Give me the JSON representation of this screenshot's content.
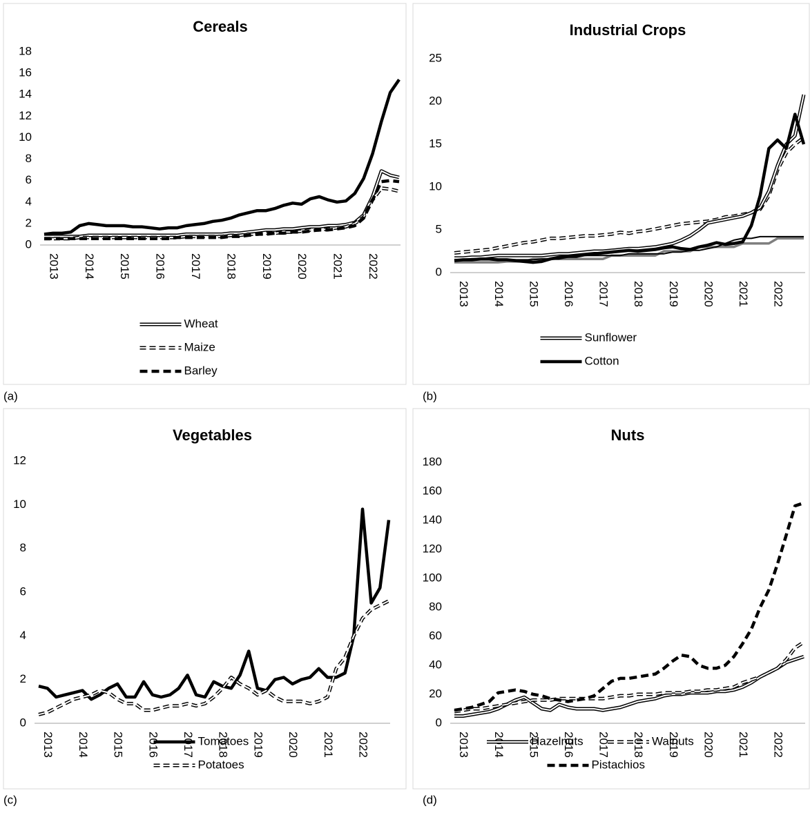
{
  "chart_data": [
    {
      "type": "line",
      "label": "(a)",
      "title": "Cereals",
      "categories": [
        null,
        "2013",
        null,
        null,
        null,
        "2014",
        null,
        null,
        null,
        "2015",
        null,
        null,
        null,
        "2016",
        null,
        null,
        null,
        "2017",
        null,
        null,
        null,
        "2018",
        null,
        null,
        null,
        "2019",
        null,
        null,
        null,
        "2020",
        null,
        null,
        null,
        "2021",
        null,
        null,
        null,
        "2022",
        null,
        null,
        null
      ],
      "ylim": [
        0,
        18
      ],
      "yticks": [
        0,
        2,
        4,
        6,
        8,
        10,
        12,
        14,
        16,
        18
      ],
      "series": [
        {
          "color": "#000000",
          "line_style": "solid",
          "values": [
            1.0,
            1.1,
            1.1,
            1.2,
            1.8,
            2.0,
            1.9,
            1.8,
            1.8,
            1.8,
            1.7,
            1.7,
            1.6,
            1.5,
            1.6,
            1.6,
            1.8,
            1.9,
            2.0,
            2.2,
            2.3,
            2.5,
            2.8,
            3.0,
            3.2,
            3.2,
            3.4,
            3.7,
            3.9,
            3.8,
            4.3,
            4.5,
            4.2,
            4.0,
            4.1,
            4.8,
            6.2,
            8.5,
            11.5,
            14.2,
            15.4
          ]
        },
        {
          "name": "Wheat",
          "color": "#000000",
          "line_style": "double",
          "values": [
            0.8,
            0.8,
            0.8,
            0.8,
            0.8,
            0.9,
            0.9,
            0.9,
            0.9,
            0.9,
            0.9,
            0.9,
            0.9,
            0.9,
            0.9,
            0.9,
            1.0,
            1.0,
            1.0,
            1.0,
            1.0,
            1.1,
            1.1,
            1.2,
            1.3,
            1.4,
            1.4,
            1.5,
            1.5,
            1.6,
            1.7,
            1.7,
            1.8,
            1.8,
            1.9,
            2.1,
            2.8,
            4.5,
            6.9,
            6.5,
            6.3
          ]
        },
        {
          "name": "Maize",
          "color": "#000000",
          "line_style": "double-dashed",
          "values": [
            0.6,
            0.6,
            0.6,
            0.6,
            0.7,
            0.7,
            0.7,
            0.7,
            0.7,
            0.7,
            0.7,
            0.7,
            0.7,
            0.7,
            0.7,
            0.7,
            0.8,
            0.8,
            0.8,
            0.8,
            0.8,
            0.9,
            0.9,
            1.0,
            1.0,
            1.1,
            1.1,
            1.2,
            1.2,
            1.3,
            1.4,
            1.4,
            1.5,
            1.6,
            1.7,
            2.0,
            2.6,
            4.2,
            5.3,
            5.2,
            5.0
          ]
        },
        {
          "name": "Barley",
          "color": "#000000",
          "line_style": "dashed",
          "values": [
            0.6,
            0.6,
            0.6,
            0.6,
            0.6,
            0.6,
            0.6,
            0.6,
            0.6,
            0.6,
            0.6,
            0.6,
            0.6,
            0.6,
            0.6,
            0.7,
            0.7,
            0.7,
            0.7,
            0.7,
            0.7,
            0.8,
            0.8,
            0.9,
            1.0,
            1.0,
            1.1,
            1.1,
            1.2,
            1.2,
            1.3,
            1.4,
            1.4,
            1.5,
            1.6,
            1.8,
            2.5,
            4.2,
            5.9,
            6.0,
            5.9
          ]
        }
      ]
    },
    {
      "type": "line",
      "label": "(b)",
      "title": "Industrial Crops",
      "categories": [
        null,
        "2013",
        null,
        null,
        null,
        "2014",
        null,
        null,
        null,
        "2015",
        null,
        null,
        null,
        "2016",
        null,
        null,
        null,
        "2017",
        null,
        null,
        null,
        "2018",
        null,
        null,
        null,
        "2019",
        null,
        null,
        null,
        "2020",
        null,
        null,
        null,
        "2021",
        null,
        null,
        null,
        "2022",
        null,
        null,
        null
      ],
      "ylim": [
        0,
        25
      ],
      "yticks": [
        0,
        5,
        10,
        15,
        20,
        25
      ],
      "series": [
        {
          "color": "#000000",
          "line_style": "double-dashed",
          "values": [
            2.3,
            2.4,
            2.5,
            2.6,
            2.7,
            2.9,
            3.1,
            3.3,
            3.5,
            3.6,
            3.8,
            4.0,
            4.0,
            4.1,
            4.2,
            4.3,
            4.3,
            4.4,
            4.5,
            4.7,
            4.6,
            4.8,
            4.9,
            5.1,
            5.3,
            5.5,
            5.7,
            5.8,
            5.9,
            6.0,
            6.2,
            6.5,
            6.6,
            6.8,
            7.0,
            7.4,
            9.0,
            12.0,
            14.0,
            15.0,
            15.8
          ]
        },
        {
          "color": "#7f7f7f",
          "line_style": "solid-medium",
          "values": [
            1.2,
            1.2,
            1.2,
            1.2,
            1.2,
            1.2,
            1.3,
            1.3,
            1.3,
            1.6,
            1.6,
            1.6,
            1.6,
            1.6,
            1.6,
            1.6,
            1.6,
            1.6,
            2.0,
            2.0,
            2.0,
            2.0,
            2.0,
            2.0,
            2.5,
            2.5,
            2.5,
            2.5,
            3.0,
            3.0,
            3.0,
            3.0,
            3.0,
            3.4,
            3.4,
            3.4,
            3.4,
            4.0,
            4.0,
            4.0,
            4.0
          ]
        },
        {
          "color": "#000000",
          "line_style": "solid-thin",
          "values": [
            1.5,
            1.5,
            1.5,
            1.5,
            1.5,
            1.5,
            1.5,
            1.5,
            1.5,
            1.5,
            1.6,
            1.6,
            1.6,
            1.8,
            1.8,
            2.0,
            2.0,
            2.0,
            2.0,
            2.0,
            2.2,
            2.2,
            2.2,
            2.2,
            2.2,
            2.4,
            2.4,
            2.6,
            2.6,
            2.8,
            3.0,
            3.4,
            3.8,
            4.0,
            4.0,
            4.2,
            4.2,
            4.2,
            4.2,
            4.2,
            4.2
          ]
        },
        {
          "name": "Sunflower",
          "color": "#000000",
          "line_style": "double",
          "values": [
            1.7,
            1.7,
            1.8,
            1.8,
            1.9,
            2.0,
            2.0,
            2.0,
            2.0,
            2.0,
            2.0,
            2.1,
            2.2,
            2.2,
            2.3,
            2.4,
            2.5,
            2.5,
            2.6,
            2.7,
            2.8,
            2.8,
            2.9,
            3.0,
            3.2,
            3.4,
            3.8,
            4.3,
            5.0,
            5.8,
            6.0,
            6.2,
            6.4,
            6.6,
            7.0,
            7.6,
            9.5,
            12.5,
            15.0,
            16.0,
            20.8
          ]
        },
        {
          "name": "Cotton",
          "color": "#000000",
          "line_style": "solid",
          "values": [
            1.4,
            1.5,
            1.5,
            1.6,
            1.6,
            1.5,
            1.5,
            1.4,
            1.3,
            1.2,
            1.3,
            1.6,
            1.8,
            1.9,
            2.0,
            2.1,
            2.2,
            2.3,
            2.4,
            2.5,
            2.6,
            2.5,
            2.6,
            2.7,
            2.9,
            3.0,
            2.8,
            2.7,
            3.0,
            3.2,
            3.5,
            3.3,
            3.4,
            3.6,
            5.5,
            9.0,
            14.5,
            15.5,
            14.5,
            18.5,
            15.0
          ]
        }
      ]
    },
    {
      "type": "line",
      "label": "(c)",
      "title": "Vegetables",
      "categories": [
        null,
        "2013",
        null,
        null,
        null,
        "2014",
        null,
        null,
        null,
        "2015",
        null,
        null,
        null,
        "2016",
        null,
        null,
        null,
        "2017",
        null,
        null,
        null,
        "2018",
        null,
        null,
        null,
        "2019",
        null,
        null,
        null,
        "2020",
        null,
        null,
        null,
        "2021",
        null,
        null,
        null,
        "2022",
        null,
        null,
        null
      ],
      "ylim": [
        0,
        12
      ],
      "yticks": [
        0,
        2,
        4,
        6,
        8,
        10,
        12
      ],
      "series": [
        {
          "name": "Tomatoes",
          "color": "#000000",
          "line_style": "solid",
          "values": [
            1.7,
            1.6,
            1.2,
            1.3,
            1.4,
            1.5,
            1.1,
            1.3,
            1.6,
            1.8,
            1.2,
            1.2,
            1.9,
            1.3,
            1.2,
            1.3,
            1.6,
            2.2,
            1.3,
            1.2,
            1.9,
            1.7,
            1.6,
            2.2,
            3.3,
            1.6,
            1.5,
            2.0,
            2.1,
            1.8,
            2.0,
            2.1,
            2.5,
            2.1,
            2.1,
            2.3,
            4.0,
            9.8,
            5.5,
            6.2,
            9.3
          ]
        },
        {
          "name": "Potatoes",
          "color": "#000000",
          "line_style": "double-dashed",
          "values": [
            0.4,
            0.5,
            0.7,
            0.9,
            1.1,
            1.2,
            1.3,
            1.5,
            1.4,
            1.1,
            0.9,
            0.9,
            0.6,
            0.6,
            0.7,
            0.8,
            0.8,
            0.9,
            0.8,
            0.9,
            1.2,
            1.6,
            2.1,
            1.8,
            1.6,
            1.3,
            1.5,
            1.2,
            1.0,
            1.0,
            1.0,
            0.9,
            1.0,
            1.2,
            2.5,
            3.0,
            4.0,
            4.8,
            5.2,
            5.4,
            5.6
          ]
        }
      ]
    },
    {
      "type": "line",
      "label": "(d)",
      "title": "Nuts",
      "categories": [
        null,
        "2013",
        null,
        null,
        null,
        "2014",
        null,
        null,
        null,
        "2015",
        null,
        null,
        null,
        "2016",
        null,
        null,
        null,
        "2017",
        null,
        null,
        null,
        "2018",
        null,
        null,
        null,
        "2019",
        null,
        null,
        null,
        "2020",
        null,
        null,
        null,
        "2021",
        null,
        null,
        null,
        "2022",
        null,
        null,
        null
      ],
      "ylim": [
        0,
        180
      ],
      "yticks": [
        0,
        20,
        40,
        60,
        80,
        100,
        120,
        140,
        160,
        180
      ],
      "series": [
        {
          "name": "Hazelnuts",
          "color": "#000000",
          "line_style": "double",
          "values": [
            5,
            5,
            6,
            7,
            8,
            10,
            13,
            16,
            18,
            14,
            10,
            9,
            13,
            11,
            10,
            10,
            10,
            9,
            10,
            11,
            13,
            15,
            16,
            17,
            19,
            20,
            20,
            21,
            21,
            21,
            22,
            22,
            23,
            25,
            28,
            32,
            35,
            38,
            42,
            44,
            46
          ]
        },
        {
          "name": "Walnuts",
          "color": "#000000",
          "line_style": "double-dashed",
          "values": [
            8,
            9,
            10,
            10,
            11,
            12,
            13,
            14,
            15,
            16,
            16,
            16,
            17,
            17,
            17,
            17,
            17,
            17,
            18,
            19,
            19,
            20,
            20,
            20,
            21,
            21,
            21,
            22,
            22,
            23,
            23,
            24,
            25,
            28,
            30,
            32,
            35,
            38,
            44,
            52,
            56
          ]
        },
        {
          "name": "Pistachios",
          "color": "#000000",
          "line_style": "dashed",
          "values": [
            9,
            10,
            11,
            13,
            15,
            21,
            22,
            23,
            22,
            20,
            19,
            17,
            16,
            15,
            16,
            17,
            19,
            24,
            29,
            31,
            31,
            32,
            33,
            34,
            38,
            43,
            47,
            46,
            40,
            38,
            38,
            40,
            46,
            55,
            65,
            80,
            92,
            110,
            130,
            150,
            152
          ]
        }
      ]
    }
  ]
}
